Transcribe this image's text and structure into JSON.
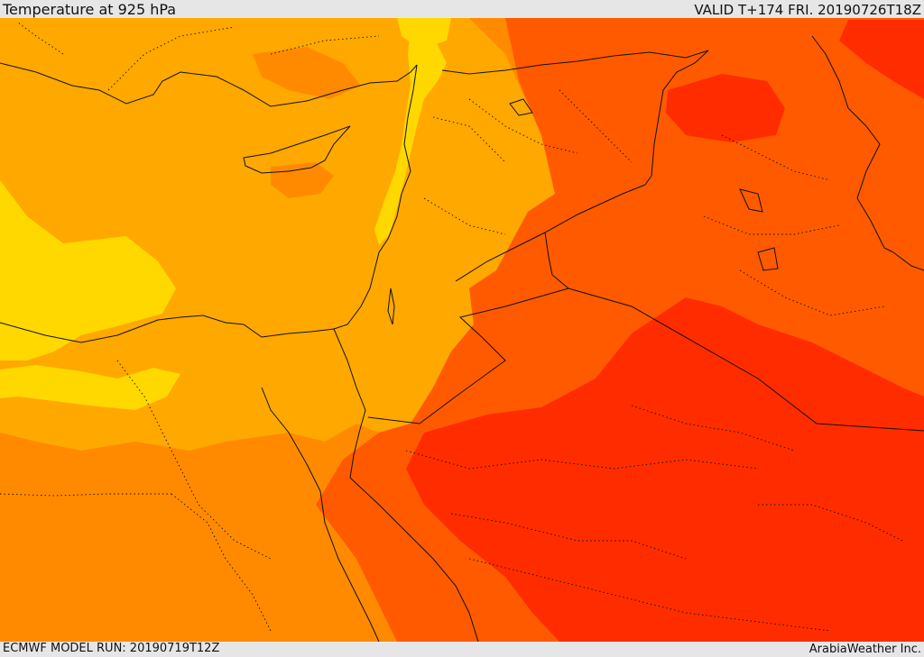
{
  "header": {
    "title": "Temperature at 925 hPa",
    "valid": "VALID T+174 FRI. 20190726T18Z"
  },
  "footer": {
    "model_run": "ECMWF MODEL RUN: 20190719T12Z",
    "credit": "ArabiaWeather Inc."
  },
  "palette": {
    "yellow": "#ffd800",
    "light_orange": "#ffa800",
    "orange": "#ff8a00",
    "dark_orange": "#ff5a00",
    "red": "#ff2c00",
    "border": "#111111"
  }
}
